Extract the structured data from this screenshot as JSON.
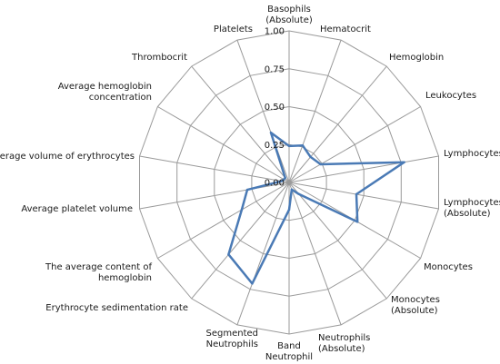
{
  "chart_data": {
    "type": "radar",
    "title": "",
    "series_color": "#4a7ab5",
    "grid_color": "#9a9a9a",
    "rlim": [
      0,
      1
    ],
    "grid": true,
    "legend": "none",
    "tick_labels": [
      "0.00",
      "0.25",
      "0.50",
      "0.75",
      "1.00"
    ],
    "categories": [
      "Basophils (Absolute)",
      "Hematocrit",
      "Hemoglobin",
      "Leukocytes",
      "Lymphocytes",
      "Lymphocytes (Absolute)",
      "Monocytes",
      "Monocytes (Absolute)",
      "Neutrophils (Absolute)",
      "Band Neutrophil",
      "Segmented Neutrophils",
      "Erythrocyte sedimentation rate",
      "The average content of hemoglobin",
      "Average platelet volume",
      "Average volume of erythrocytes",
      "Average hemoglobin concentration",
      "Thrombocrit",
      "Platelets"
    ],
    "values": [
      0.24,
      0.26,
      0.22,
      0.24,
      0.77,
      0.45,
      0.52,
      0.1,
      0.05,
      0.18,
      0.71,
      0.62,
      0.36,
      0.28,
      0.05,
      0.04,
      0.04,
      0.35
    ]
  }
}
